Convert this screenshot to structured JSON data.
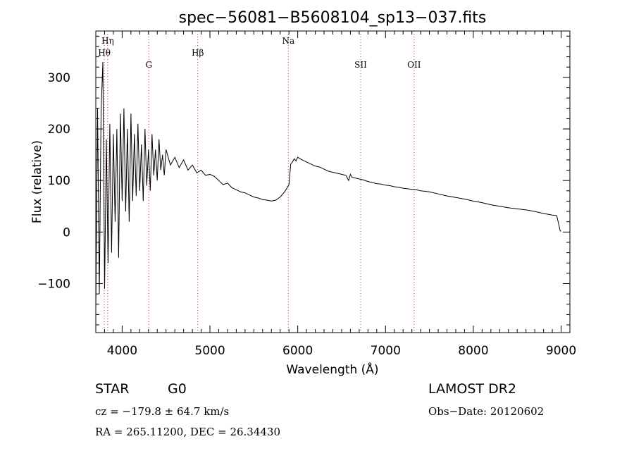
{
  "chart_data": {
    "type": "line",
    "title": "spec−56081−B5608104_sp13−037.fits",
    "xlabel": "Wavelength (Å)",
    "ylabel": "Flux (relative)",
    "xlim": [
      3700,
      9100
    ],
    "ylim": [
      -195,
      390
    ],
    "xticks": [
      4000,
      5000,
      6000,
      7000,
      8000,
      9000
    ],
    "yticks": [
      -100,
      0,
      100,
      200,
      300
    ],
    "grid": false,
    "series": [
      {
        "x": [
          3700,
          3720,
          3740,
          3760,
          3780,
          3800,
          3820,
          3840,
          3860,
          3880,
          3900,
          3920,
          3940,
          3960,
          3980,
          4000,
          4020,
          4040,
          4060,
          4080,
          4100,
          4120,
          4140,
          4160,
          4180,
          4200,
          4220,
          4240,
          4260,
          4280,
          4300,
          4320,
          4340,
          4360,
          4380,
          4400,
          4420,
          4440,
          4460,
          4480,
          4500,
          4550,
          4600,
          4650,
          4700,
          4750,
          4800,
          4850,
          4900,
          4950,
          5000,
          5050,
          5100,
          5150,
          5200,
          5250,
          5300,
          5350,
          5400,
          5450,
          5500,
          5550,
          5600,
          5650,
          5700,
          5750,
          5800,
          5850,
          5880,
          5900,
          5920,
          5940,
          5960,
          5980,
          6000,
          6050,
          6100,
          6150,
          6200,
          6250,
          6300,
          6350,
          6400,
          6450,
          6500,
          6550,
          6580,
          6600,
          6620,
          6650,
          6700,
          6750,
          6800,
          6850,
          6900,
          6950,
          7000,
          7050,
          7100,
          7150,
          7200,
          7250,
          7300,
          7350,
          7400,
          7450,
          7500,
          7600,
          7700,
          7800,
          7900,
          8000,
          8100,
          8200,
          8300,
          8400,
          8500,
          8600,
          8700,
          8800,
          8900,
          8950,
          8990,
          9000
        ],
        "y": [
          -150,
          240,
          -120,
          235,
          330,
          -110,
          180,
          -60,
          210,
          -40,
          190,
          20,
          200,
          -50,
          230,
          60,
          240,
          40,
          200,
          20,
          230,
          60,
          190,
          70,
          210,
          80,
          170,
          60,
          200,
          90,
          160,
          80,
          190,
          110,
          160,
          100,
          180,
          120,
          150,
          110,
          160,
          130,
          145,
          125,
          140,
          120,
          130,
          115,
          120,
          110,
          112,
          108,
          100,
          92,
          95,
          86,
          82,
          78,
          76,
          72,
          68,
          66,
          63,
          62,
          60,
          62,
          68,
          78,
          86,
          92,
          132,
          136,
          142,
          138,
          145,
          140,
          136,
          132,
          128,
          126,
          122,
          118,
          116,
          114,
          112,
          110,
          100,
          112,
          106,
          105,
          103,
          101,
          98,
          96,
          94,
          93,
          91,
          90,
          88,
          87,
          85,
          84,
          83,
          82,
          80,
          79,
          78,
          74,
          70,
          67,
          64,
          60,
          57,
          53,
          50,
          47,
          45,
          43,
          40,
          36,
          33,
          32,
          2,
          2
        ]
      }
    ],
    "line_markers": [
      {
        "label": "Hη",
        "x": 3835
      },
      {
        "label": "Hθ",
        "x": 3797
      },
      {
        "label": "G",
        "x": 4304
      },
      {
        "label": "Hβ",
        "x": 4861
      },
      {
        "label": "Na",
        "x": 5893
      },
      {
        "label": "SII",
        "x": 6717
      },
      {
        "label": "OII",
        "x": 7325
      }
    ]
  },
  "info": {
    "object_class": "STAR",
    "subclass": "G0",
    "survey": "LAMOST DR2",
    "velocity": "cz = −179.8 ± 64.7 km/s",
    "obs_date": "Obs−Date: 20120602",
    "coords": "RA = 265.11200, DEC =  26.34430"
  }
}
